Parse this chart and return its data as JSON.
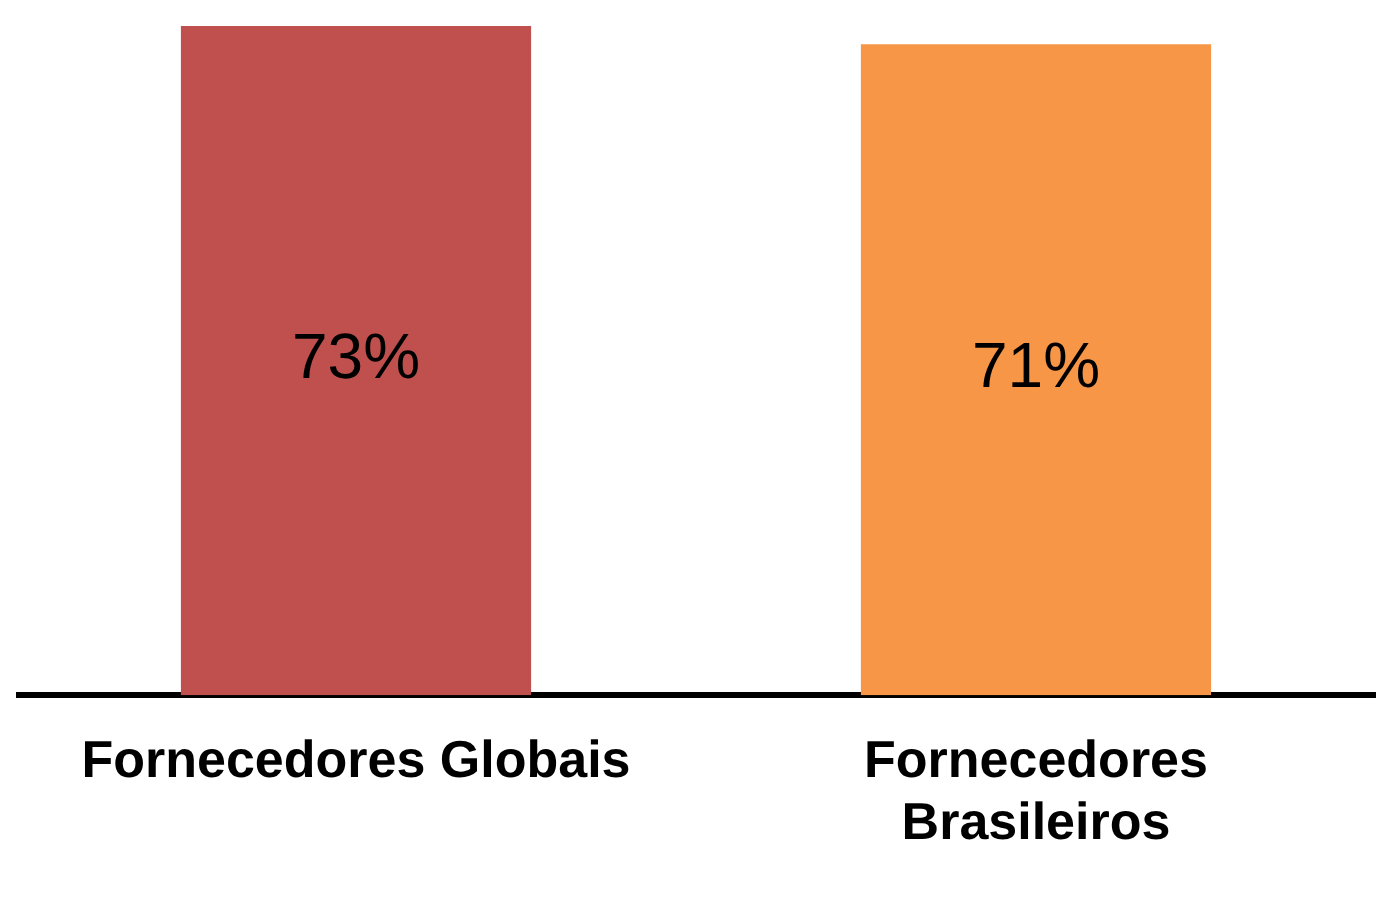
{
  "chart_data": {
    "type": "bar",
    "categories": [
      "Fornecedores Globais",
      "Fornecedores Brasileiros"
    ],
    "values": [
      73,
      71
    ],
    "colors": [
      "#c0504d",
      "#f79646"
    ],
    "ylim": [
      0,
      73
    ],
    "tick_labels": "x",
    "data_labels": true,
    "value_labels": [
      "73%",
      "71%"
    ],
    "grid": false,
    "legend": false
  }
}
